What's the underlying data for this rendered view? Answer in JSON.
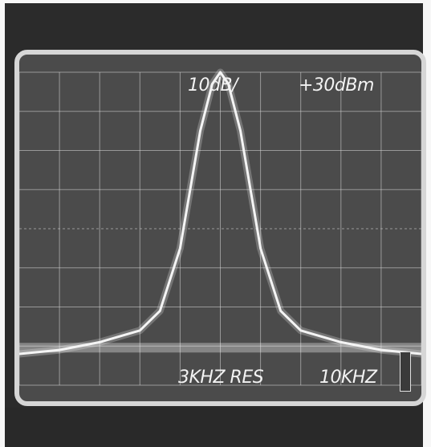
{
  "display": {
    "scale_label": "10dB/",
    "reference_label": "+30dBm",
    "resolution_label": "3KHZ RES",
    "span_label": "10KHZ"
  },
  "graticule": {
    "divisions_x": 10,
    "divisions_y": 8,
    "grid": true
  },
  "colors": {
    "screen": "#4b4b4b",
    "grid": "#d8d8d8",
    "trace": "#f4f4f4",
    "bezel": "#2b2b2b",
    "frame": "#d6d6d6"
  },
  "chart_data": {
    "type": "line",
    "title": "",
    "xlabel": "",
    "ylabel": "",
    "x": [
      -5,
      -4,
      -3,
      -2,
      -1.5,
      -1,
      -0.5,
      -0.2,
      0,
      0.2,
      0.5,
      1,
      1.5,
      2,
      3,
      4,
      5
    ],
    "y": [
      -72,
      -71,
      -69,
      -66,
      -61,
      -45,
      -15,
      -3,
      0,
      -3,
      -15,
      -45,
      -61,
      -66,
      -69,
      -71,
      -72
    ],
    "xlim": [
      -5,
      5
    ],
    "ylim": [
      -80,
      0
    ],
    "x_unit": "kHz",
    "y_unit": "dB"
  }
}
